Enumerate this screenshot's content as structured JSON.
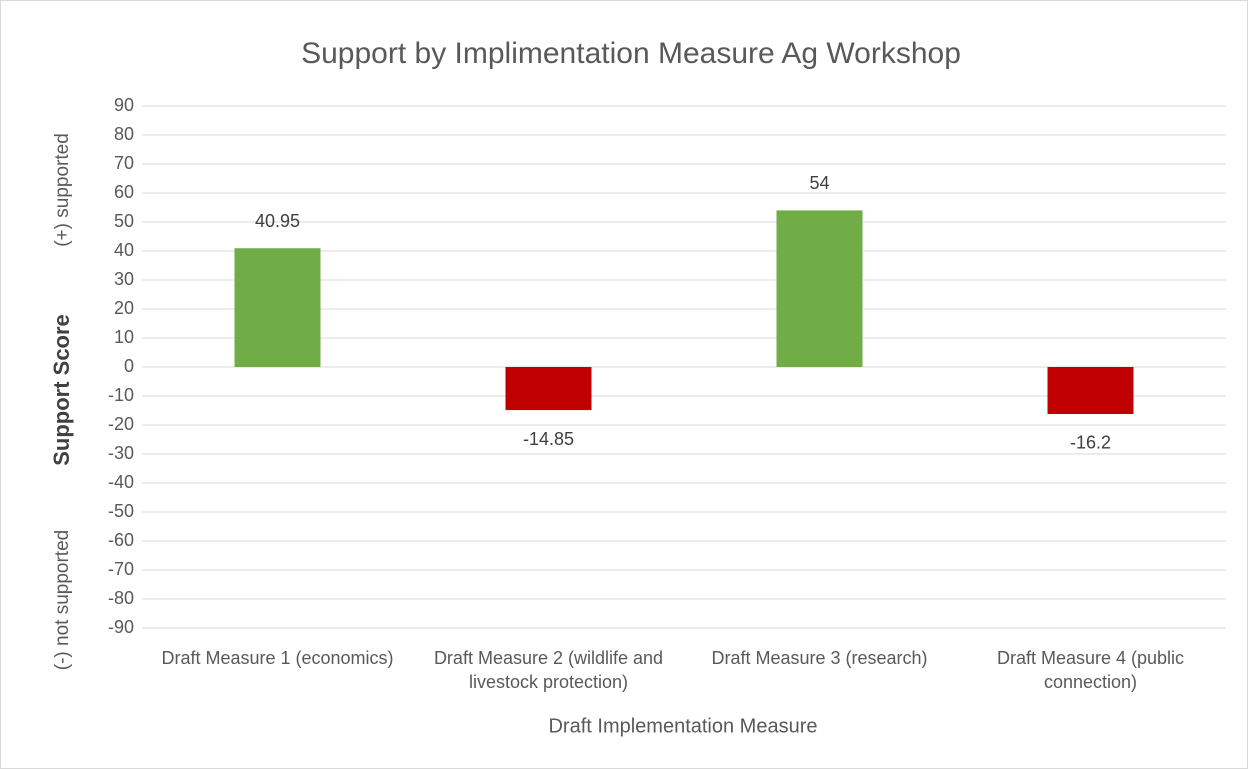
{
  "chart_data": {
    "type": "bar",
    "title": "Support by Implimentation Measure Ag Workshop",
    "xlabel": "Draft Implementation Measure",
    "ylabel": "Support Score",
    "annotations": [
      "(+) supported",
      "(-) not supported"
    ],
    "categories": [
      "Draft Measure 1 (economics)",
      "Draft Measure 2 (wildlife and livestock protection)",
      "Draft Measure 3 (research)",
      "Draft Measure 4 (public connection)"
    ],
    "values": [
      40.95,
      -14.85,
      54,
      -16.2
    ],
    "colors": [
      "#70ad47",
      "#c00000",
      "#70ad47",
      "#c00000"
    ],
    "ylim": [
      -90,
      90
    ],
    "yticks": [
      -90,
      -80,
      -70,
      -60,
      -50,
      -40,
      -30,
      -20,
      -10,
      0,
      10,
      20,
      30,
      40,
      50,
      60,
      70,
      80,
      90
    ],
    "grid": true
  }
}
